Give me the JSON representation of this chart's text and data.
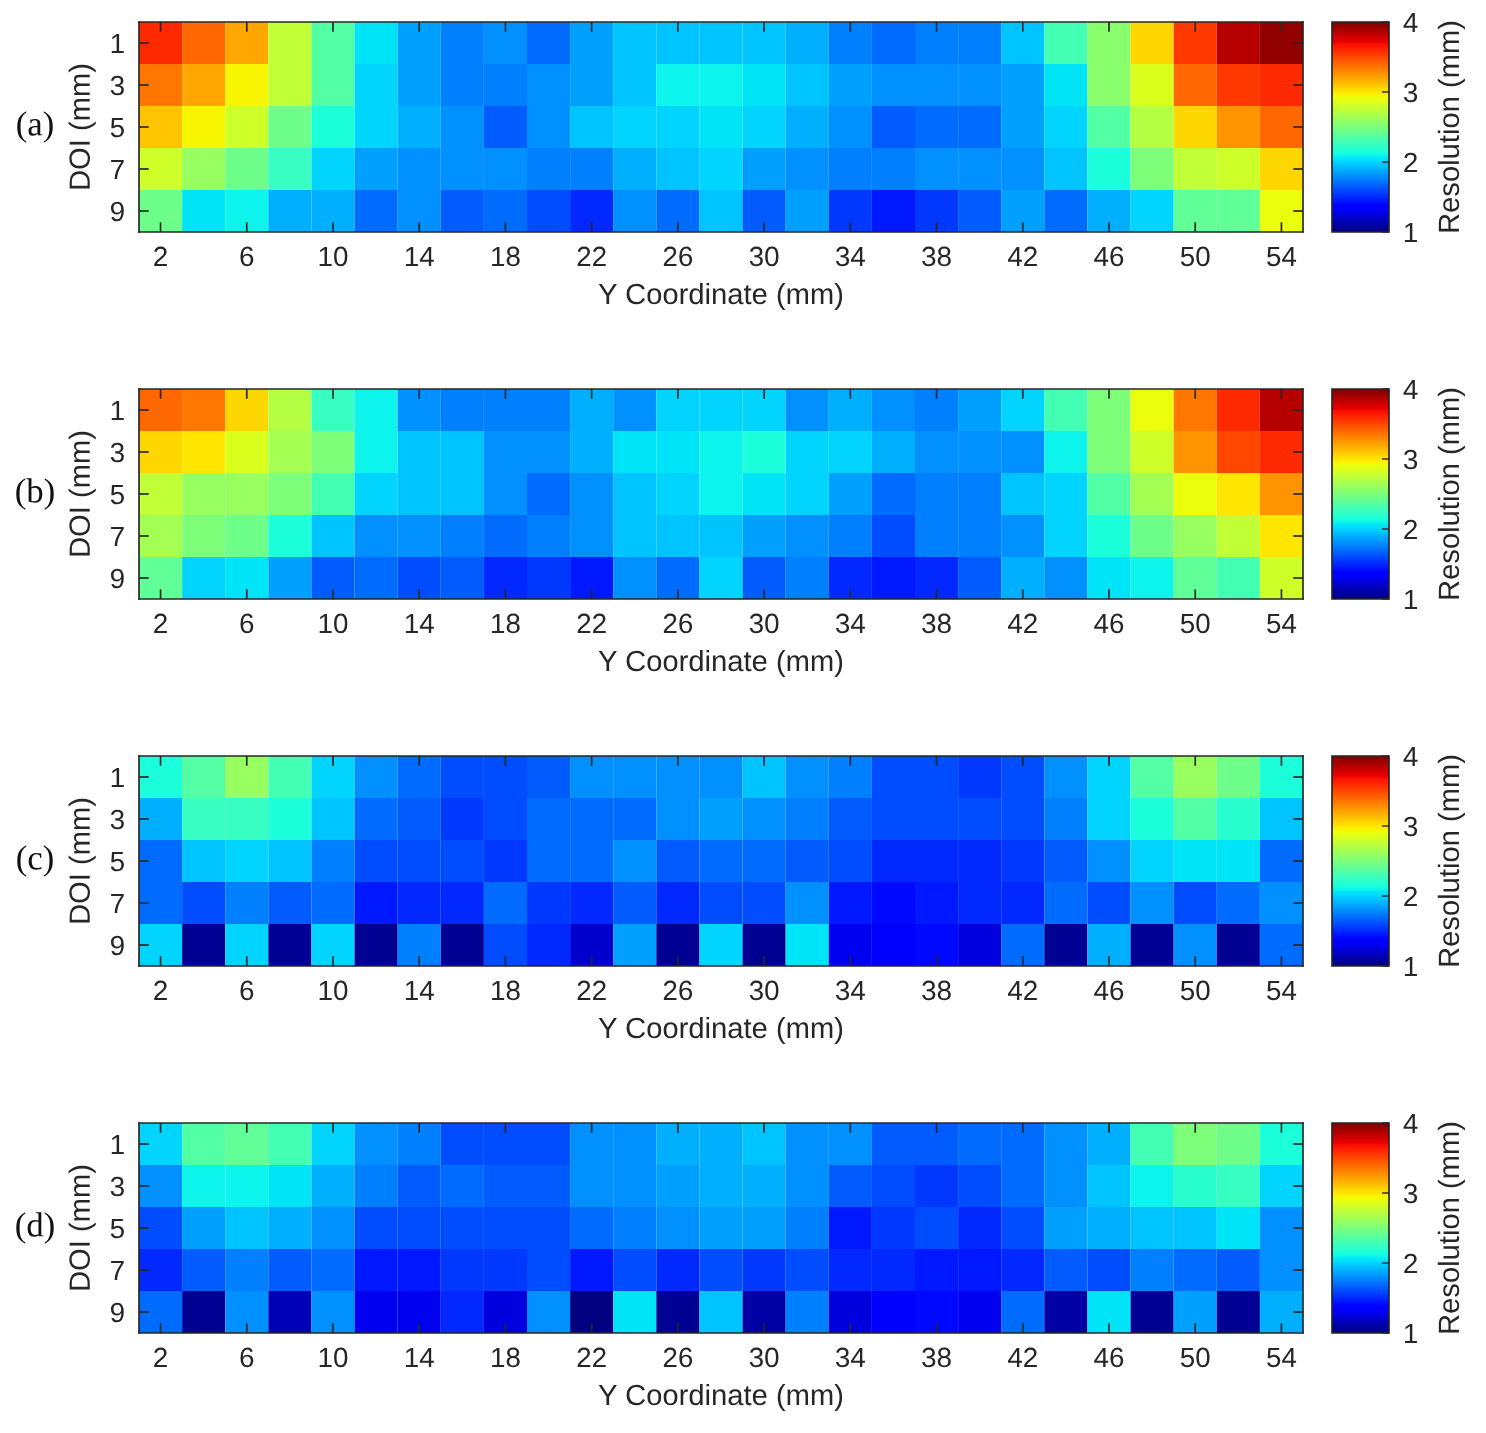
{
  "chart_data": [
    {
      "type": "heatmap",
      "annotations": [
        "(a)"
      ],
      "xlabel": "Y Coordinate (mm)",
      "ylabel": "DOI (mm)",
      "clabel": "Resolution (mm)",
      "clim": [
        1,
        4
      ],
      "cticks": [
        1,
        2,
        3,
        4
      ],
      "categories": [
        "2",
        null,
        "6",
        null,
        "10",
        null,
        "14",
        null,
        "18",
        null,
        "22",
        null,
        "26",
        null,
        "30",
        null,
        "34",
        null,
        "38",
        null,
        "42",
        null,
        "46",
        null,
        "50",
        null,
        "54"
      ],
      "y_categories": [
        "1",
        "3",
        "5",
        "7",
        "9"
      ],
      "cells": [
        [
          3.6,
          3.4,
          3.2,
          2.75,
          2.35,
          2.05,
          1.85,
          1.75,
          1.8,
          1.7,
          1.85,
          1.95,
          1.95,
          1.95,
          1.95,
          1.9,
          1.75,
          1.7,
          1.75,
          1.75,
          1.95,
          2.3,
          2.55,
          3.05,
          3.55,
          3.85,
          3.95
        ],
        [
          3.35,
          3.2,
          2.95,
          2.75,
          2.35,
          2.0,
          1.85,
          1.75,
          1.75,
          1.8,
          1.85,
          1.95,
          2.1,
          2.1,
          2.05,
          1.95,
          1.85,
          1.8,
          1.8,
          1.8,
          1.85,
          2.05,
          2.55,
          2.85,
          3.4,
          3.55,
          3.6
        ],
        [
          3.1,
          2.95,
          2.8,
          2.45,
          2.15,
          2.0,
          1.9,
          1.8,
          1.65,
          1.8,
          1.95,
          2.0,
          2.0,
          2.05,
          2.0,
          1.9,
          1.8,
          1.65,
          1.7,
          1.7,
          1.85,
          2.0,
          2.35,
          2.7,
          3.05,
          3.25,
          3.4
        ],
        [
          2.8,
          2.6,
          2.45,
          2.25,
          2.0,
          1.85,
          1.8,
          1.8,
          1.8,
          1.75,
          1.75,
          1.9,
          1.95,
          2.0,
          1.85,
          1.8,
          1.75,
          1.75,
          1.8,
          1.8,
          1.8,
          1.95,
          2.15,
          2.5,
          2.75,
          2.8,
          3.05
        ],
        [
          2.45,
          2.05,
          2.1,
          1.9,
          1.9,
          1.7,
          1.8,
          1.65,
          1.7,
          1.6,
          1.5,
          1.8,
          1.7,
          1.95,
          1.65,
          1.85,
          1.55,
          1.45,
          1.55,
          1.65,
          1.85,
          1.7,
          1.9,
          2.0,
          2.4,
          2.4,
          2.9
        ]
      ]
    },
    {
      "type": "heatmap",
      "annotations": [
        "(b)"
      ],
      "xlabel": "Y Coordinate (mm)",
      "ylabel": "DOI (mm)",
      "clabel": "Resolution (mm)",
      "clim": [
        1,
        4
      ],
      "cticks": [
        1,
        2,
        3,
        4
      ],
      "categories": [
        "2",
        null,
        "6",
        null,
        "10",
        null,
        "14",
        null,
        "18",
        null,
        "22",
        null,
        "26",
        null,
        "30",
        null,
        "34",
        null,
        "38",
        null,
        "42",
        null,
        "46",
        null,
        "50",
        null,
        "54"
      ],
      "y_categories": [
        "1",
        "3",
        "5",
        "7",
        "9"
      ],
      "cells": [
        [
          3.4,
          3.35,
          3.05,
          2.7,
          2.25,
          2.1,
          1.8,
          1.75,
          1.75,
          1.75,
          1.9,
          1.8,
          2.0,
          2.0,
          2.0,
          1.8,
          1.9,
          1.8,
          1.75,
          1.85,
          2.0,
          2.3,
          2.5,
          2.9,
          3.35,
          3.6,
          3.85
        ],
        [
          3.05,
          3.0,
          2.85,
          2.65,
          2.5,
          2.1,
          1.95,
          1.95,
          1.8,
          1.8,
          1.9,
          2.05,
          2.05,
          2.1,
          2.15,
          2.0,
          2.0,
          1.9,
          1.8,
          1.8,
          1.8,
          2.1,
          2.5,
          2.8,
          3.25,
          3.5,
          3.6
        ],
        [
          2.75,
          2.6,
          2.6,
          2.5,
          2.3,
          2.0,
          1.95,
          1.95,
          1.8,
          1.7,
          1.8,
          1.95,
          2.0,
          2.1,
          2.05,
          2.0,
          1.85,
          1.7,
          1.75,
          1.75,
          1.95,
          2.0,
          2.35,
          2.65,
          2.9,
          3.0,
          3.25
        ],
        [
          2.65,
          2.5,
          2.45,
          2.15,
          1.95,
          1.8,
          1.8,
          1.75,
          1.7,
          1.75,
          1.8,
          1.95,
          1.95,
          1.95,
          1.85,
          1.8,
          1.75,
          1.6,
          1.75,
          1.75,
          1.8,
          2.0,
          2.15,
          2.45,
          2.6,
          2.75,
          3.0
        ],
        [
          2.4,
          2.0,
          2.05,
          1.85,
          1.65,
          1.7,
          1.6,
          1.65,
          1.5,
          1.55,
          1.45,
          1.8,
          1.7,
          2.0,
          1.65,
          1.75,
          1.5,
          1.45,
          1.5,
          1.65,
          1.9,
          1.8,
          2.05,
          2.1,
          2.4,
          2.3,
          2.8
        ]
      ]
    },
    {
      "type": "heatmap",
      "annotations": [
        "(c)"
      ],
      "xlabel": "Y Coordinate (mm)",
      "ylabel": "DOI (mm)",
      "clabel": "Resolution (mm)",
      "clim": [
        1,
        4
      ],
      "cticks": [
        1,
        2,
        3,
        4
      ],
      "categories": [
        "2",
        null,
        "6",
        null,
        "10",
        null,
        "14",
        null,
        "18",
        null,
        "22",
        null,
        "26",
        null,
        "30",
        null,
        "34",
        null,
        "38",
        null,
        "42",
        null,
        "46",
        null,
        "50",
        null,
        "54"
      ],
      "y_categories": [
        "1",
        "3",
        "5",
        "7",
        "9"
      ],
      "cells": [
        [
          2.15,
          2.35,
          2.6,
          2.3,
          2.0,
          1.8,
          1.7,
          1.6,
          1.6,
          1.65,
          1.8,
          1.8,
          1.8,
          1.8,
          1.95,
          1.8,
          1.75,
          1.6,
          1.6,
          1.55,
          1.6,
          1.8,
          2.0,
          2.35,
          2.6,
          2.45,
          2.15
        ],
        [
          1.9,
          2.25,
          2.25,
          2.15,
          1.95,
          1.7,
          1.65,
          1.55,
          1.6,
          1.7,
          1.7,
          1.7,
          1.8,
          1.85,
          1.8,
          1.75,
          1.65,
          1.6,
          1.6,
          1.6,
          1.6,
          1.75,
          2.0,
          2.15,
          2.35,
          2.2,
          1.95
        ],
        [
          1.7,
          1.95,
          2.0,
          1.95,
          1.75,
          1.6,
          1.6,
          1.6,
          1.55,
          1.7,
          1.7,
          1.8,
          1.65,
          1.7,
          1.7,
          1.65,
          1.6,
          1.5,
          1.5,
          1.5,
          1.55,
          1.65,
          1.8,
          2.0,
          2.05,
          2.05,
          1.7
        ],
        [
          1.7,
          1.6,
          1.75,
          1.65,
          1.7,
          1.45,
          1.5,
          1.5,
          1.7,
          1.55,
          1.5,
          1.65,
          1.5,
          1.6,
          1.6,
          1.8,
          1.45,
          1.4,
          1.45,
          1.5,
          1.5,
          1.7,
          1.6,
          1.8,
          1.6,
          1.7,
          1.8
        ],
        [
          2.0,
          1.05,
          2.0,
          1.05,
          2.0,
          1.05,
          1.75,
          1.05,
          1.6,
          1.5,
          1.2,
          1.85,
          1.05,
          2.0,
          1.05,
          2.05,
          1.3,
          1.35,
          1.4,
          1.25,
          1.7,
          1.05,
          1.9,
          1.05,
          1.8,
          1.05,
          1.7
        ]
      ]
    },
    {
      "type": "heatmap",
      "annotations": [
        "(d)"
      ],
      "xlabel": "Y Coordinate (mm)",
      "ylabel": "DOI (mm)",
      "clabel": "Resolution (mm)",
      "clim": [
        1,
        4
      ],
      "cticks": [
        1,
        2,
        3,
        4
      ],
      "categories": [
        "2",
        null,
        "6",
        null,
        "10",
        null,
        "14",
        null,
        "18",
        null,
        "22",
        null,
        "26",
        null,
        "30",
        null,
        "34",
        null,
        "38",
        null,
        "42",
        null,
        "46",
        null,
        "50",
        null,
        "54"
      ],
      "y_categories": [
        "1",
        "3",
        "5",
        "7",
        "9"
      ],
      "cells": [
        [
          2.0,
          2.35,
          2.4,
          2.3,
          2.0,
          1.8,
          1.75,
          1.6,
          1.6,
          1.6,
          1.8,
          1.8,
          1.9,
          1.9,
          1.95,
          1.8,
          1.8,
          1.65,
          1.65,
          1.7,
          1.7,
          1.8,
          1.9,
          2.3,
          2.5,
          2.45,
          2.15
        ],
        [
          1.8,
          2.1,
          2.1,
          2.05,
          1.9,
          1.75,
          1.65,
          1.7,
          1.65,
          1.65,
          1.8,
          1.8,
          1.85,
          1.9,
          1.9,
          1.8,
          1.65,
          1.6,
          1.55,
          1.6,
          1.7,
          1.8,
          1.95,
          2.1,
          2.2,
          2.25,
          2.0
        ],
        [
          1.6,
          1.85,
          1.95,
          1.9,
          1.8,
          1.6,
          1.6,
          1.6,
          1.6,
          1.6,
          1.7,
          1.75,
          1.8,
          1.85,
          1.85,
          1.75,
          1.45,
          1.55,
          1.6,
          1.5,
          1.6,
          1.85,
          1.9,
          1.95,
          1.95,
          2.05,
          1.8
        ],
        [
          1.5,
          1.65,
          1.75,
          1.65,
          1.7,
          1.45,
          1.45,
          1.55,
          1.55,
          1.6,
          1.45,
          1.6,
          1.5,
          1.6,
          1.55,
          1.6,
          1.5,
          1.5,
          1.45,
          1.45,
          1.5,
          1.65,
          1.6,
          1.75,
          1.7,
          1.65,
          1.8
        ],
        [
          1.7,
          1.05,
          1.8,
          1.15,
          1.8,
          1.3,
          1.3,
          1.5,
          1.25,
          1.8,
          1.0,
          2.05,
          1.05,
          1.95,
          1.1,
          1.75,
          1.25,
          1.35,
          1.4,
          1.3,
          1.7,
          1.1,
          2.05,
          1.05,
          1.85,
          1.05,
          1.9
        ]
      ]
    }
  ]
}
